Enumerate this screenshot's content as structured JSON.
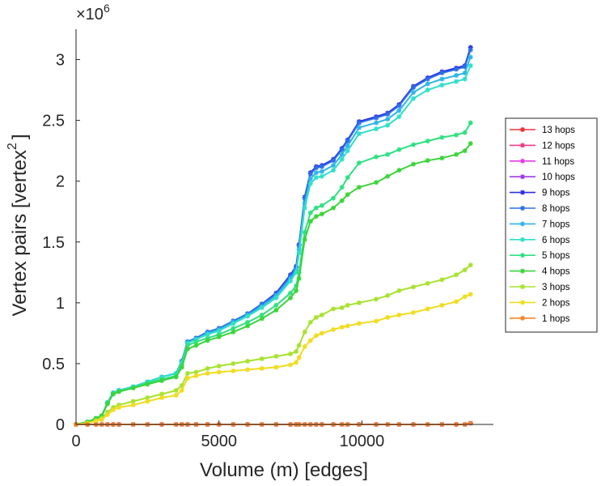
{
  "chart_data": {
    "type": "line",
    "title": "",
    "xlabel": "Volume (m) [edges]",
    "ylabel_main": "Vertex pairs [vertex",
    "ylabel_sup": "2",
    "ylabel_close": "]",
    "y_exponent_base": "×10",
    "y_exponent_power": "6",
    "xlim": [
      0,
      14600
    ],
    "ylim": [
      0,
      3.25
    ],
    "xticks": [
      0,
      5000,
      10000
    ],
    "xtick_labels": [
      "0",
      "5000",
      "10000"
    ],
    "yticks": [
      0,
      0.5,
      1,
      1.5,
      2,
      2.5,
      3
    ],
    "ytick_labels": [
      "0",
      "0.5",
      "1",
      "1.5",
      "2",
      "2.5",
      "3"
    ],
    "grid": false,
    "legend_position": "right",
    "x": [
      0,
      400,
      700,
      900,
      1100,
      1300,
      1500,
      2000,
      2500,
      3000,
      3500,
      3700,
      3900,
      4200,
      4600,
      5000,
      5500,
      6000,
      6500,
      7000,
      7500,
      7700,
      7800,
      8000,
      8200,
      8400,
      8600,
      9000,
      9300,
      9500,
      9900,
      10500,
      10900,
      11300,
      11800,
      12300,
      12800,
      13300,
      13600,
      13800
    ],
    "series": [
      {
        "name": "13 hops",
        "color": "#e8323c",
        "values": [
          0,
          0,
          0,
          0,
          0,
          0,
          0,
          0,
          0,
          0,
          0,
          0,
          0,
          0,
          0,
          0,
          0,
          0,
          0,
          0,
          0,
          0,
          0,
          0,
          0,
          0,
          0,
          0,
          0,
          0,
          0,
          0,
          0,
          0,
          0,
          0,
          0,
          0,
          0,
          0.01
        ]
      },
      {
        "name": "12 hops",
        "color": "#ee3a86",
        "values": [
          0,
          0,
          0,
          0,
          0,
          0,
          0,
          0,
          0,
          0,
          0,
          0,
          0,
          0,
          0,
          0,
          0,
          0,
          0,
          0,
          0,
          0,
          0,
          0,
          0,
          0,
          0,
          0,
          0,
          0,
          0,
          0,
          0,
          0,
          0,
          0,
          0,
          0,
          0,
          0.01
        ]
      },
      {
        "name": "11 hops",
        "color": "#e23ce6",
        "values": [
          0,
          0,
          0,
          0,
          0,
          0,
          0,
          0,
          0,
          0,
          0,
          0,
          0,
          0,
          0,
          0,
          0,
          0,
          0,
          0,
          0,
          0,
          0,
          0,
          0,
          0,
          0,
          0,
          0,
          0,
          0,
          0,
          0,
          0,
          0,
          0,
          0,
          0,
          0,
          0.01
        ]
      },
      {
        "name": "10 hops",
        "color": "#9a3ae8",
        "values": [
          0,
          0,
          0,
          0,
          0,
          0,
          0,
          0,
          0,
          0,
          0,
          0,
          0,
          0,
          0,
          0,
          0,
          0,
          0,
          0,
          0,
          0,
          0,
          0,
          0,
          0,
          0,
          0,
          0,
          0,
          0,
          0,
          0,
          0,
          0,
          0,
          0,
          0,
          0,
          0.01
        ]
      },
      {
        "name": "9 hops",
        "color": "#2c2ce6",
        "values": [
          0,
          0.02,
          0.05,
          0.07,
          0.18,
          0.26,
          0.28,
          0.31,
          0.35,
          0.39,
          0.42,
          0.52,
          0.68,
          0.71,
          0.76,
          0.79,
          0.85,
          0.91,
          0.99,
          1.08,
          1.23,
          1.3,
          1.48,
          1.87,
          2.07,
          2.12,
          2.13,
          2.18,
          2.27,
          2.34,
          2.49,
          2.53,
          2.56,
          2.63,
          2.78,
          2.85,
          2.9,
          2.93,
          2.95,
          3.1
        ]
      },
      {
        "name": "8 hops",
        "color": "#2d70e8",
        "values": [
          0,
          0.02,
          0.05,
          0.07,
          0.18,
          0.26,
          0.28,
          0.31,
          0.35,
          0.39,
          0.42,
          0.52,
          0.68,
          0.71,
          0.76,
          0.79,
          0.85,
          0.91,
          0.99,
          1.07,
          1.22,
          1.29,
          1.47,
          1.86,
          2.06,
          2.11,
          2.12,
          2.17,
          2.26,
          2.33,
          2.48,
          2.52,
          2.55,
          2.62,
          2.77,
          2.84,
          2.89,
          2.92,
          2.94,
          3.08
        ]
      },
      {
        "name": "7 hops",
        "color": "#2db4ea",
        "values": [
          0,
          0.02,
          0.05,
          0.07,
          0.18,
          0.26,
          0.28,
          0.31,
          0.35,
          0.39,
          0.42,
          0.51,
          0.67,
          0.7,
          0.75,
          0.78,
          0.84,
          0.9,
          0.97,
          1.06,
          1.2,
          1.27,
          1.44,
          1.82,
          2.02,
          2.07,
          2.08,
          2.13,
          2.22,
          2.29,
          2.44,
          2.48,
          2.51,
          2.58,
          2.73,
          2.8,
          2.84,
          2.87,
          2.89,
          3.02
        ]
      },
      {
        "name": "6 hops",
        "color": "#2ee0c8",
        "values": [
          0,
          0.02,
          0.05,
          0.07,
          0.18,
          0.26,
          0.28,
          0.31,
          0.35,
          0.39,
          0.42,
          0.51,
          0.67,
          0.7,
          0.74,
          0.77,
          0.83,
          0.89,
          0.96,
          1.04,
          1.18,
          1.25,
          1.41,
          1.78,
          1.98,
          2.03,
          2.04,
          2.09,
          2.18,
          2.25,
          2.39,
          2.43,
          2.46,
          2.53,
          2.68,
          2.75,
          2.79,
          2.82,
          2.84,
          2.95
        ]
      },
      {
        "name": "5 hops",
        "color": "#2ee080",
        "values": [
          0,
          0.02,
          0.05,
          0.07,
          0.17,
          0.25,
          0.27,
          0.3,
          0.34,
          0.37,
          0.4,
          0.49,
          0.65,
          0.68,
          0.71,
          0.74,
          0.79,
          0.84,
          0.9,
          0.98,
          1.08,
          1.14,
          1.25,
          1.58,
          1.74,
          1.78,
          1.8,
          1.86,
          1.95,
          2.03,
          2.15,
          2.2,
          2.22,
          2.26,
          2.3,
          2.33,
          2.36,
          2.38,
          2.4,
          2.48
        ]
      },
      {
        "name": "4 hops",
        "color": "#3ad43a",
        "values": [
          0,
          0.02,
          0.05,
          0.07,
          0.17,
          0.25,
          0.27,
          0.3,
          0.33,
          0.36,
          0.39,
          0.47,
          0.62,
          0.65,
          0.69,
          0.72,
          0.76,
          0.81,
          0.87,
          0.94,
          1.04,
          1.1,
          1.2,
          1.52,
          1.67,
          1.71,
          1.73,
          1.78,
          1.84,
          1.89,
          1.95,
          1.99,
          2.04,
          2.09,
          2.14,
          2.17,
          2.19,
          2.22,
          2.25,
          2.31
        ]
      },
      {
        "name": "3 hops",
        "color": "#a6e22e",
        "values": [
          0,
          0.01,
          0.03,
          0.05,
          0.1,
          0.14,
          0.16,
          0.19,
          0.22,
          0.25,
          0.28,
          0.32,
          0.42,
          0.43,
          0.46,
          0.48,
          0.5,
          0.52,
          0.54,
          0.56,
          0.58,
          0.6,
          0.65,
          0.76,
          0.84,
          0.88,
          0.9,
          0.95,
          0.96,
          0.98,
          1.0,
          1.03,
          1.06,
          1.1,
          1.13,
          1.16,
          1.19,
          1.23,
          1.27,
          1.31
        ]
      },
      {
        "name": "2 hops",
        "color": "#f0dc1e",
        "values": [
          0,
          0.01,
          0.03,
          0.04,
          0.08,
          0.12,
          0.14,
          0.16,
          0.19,
          0.22,
          0.24,
          0.28,
          0.38,
          0.4,
          0.42,
          0.43,
          0.44,
          0.45,
          0.46,
          0.47,
          0.49,
          0.51,
          0.55,
          0.64,
          0.69,
          0.73,
          0.75,
          0.78,
          0.8,
          0.81,
          0.83,
          0.85,
          0.88,
          0.9,
          0.92,
          0.95,
          0.98,
          1.01,
          1.05,
          1.07
        ]
      },
      {
        "name": "1 hops",
        "color": "#f2862a",
        "values": [
          0,
          0,
          0,
          0,
          0,
          0,
          0,
          0,
          0,
          0,
          0,
          0,
          0,
          0,
          0,
          0,
          0,
          0,
          0,
          0,
          0,
          0,
          0,
          0,
          0,
          0,
          0,
          0,
          0,
          0,
          0,
          0,
          0,
          0,
          0,
          0,
          0,
          0,
          0,
          0.01
        ]
      }
    ]
  }
}
